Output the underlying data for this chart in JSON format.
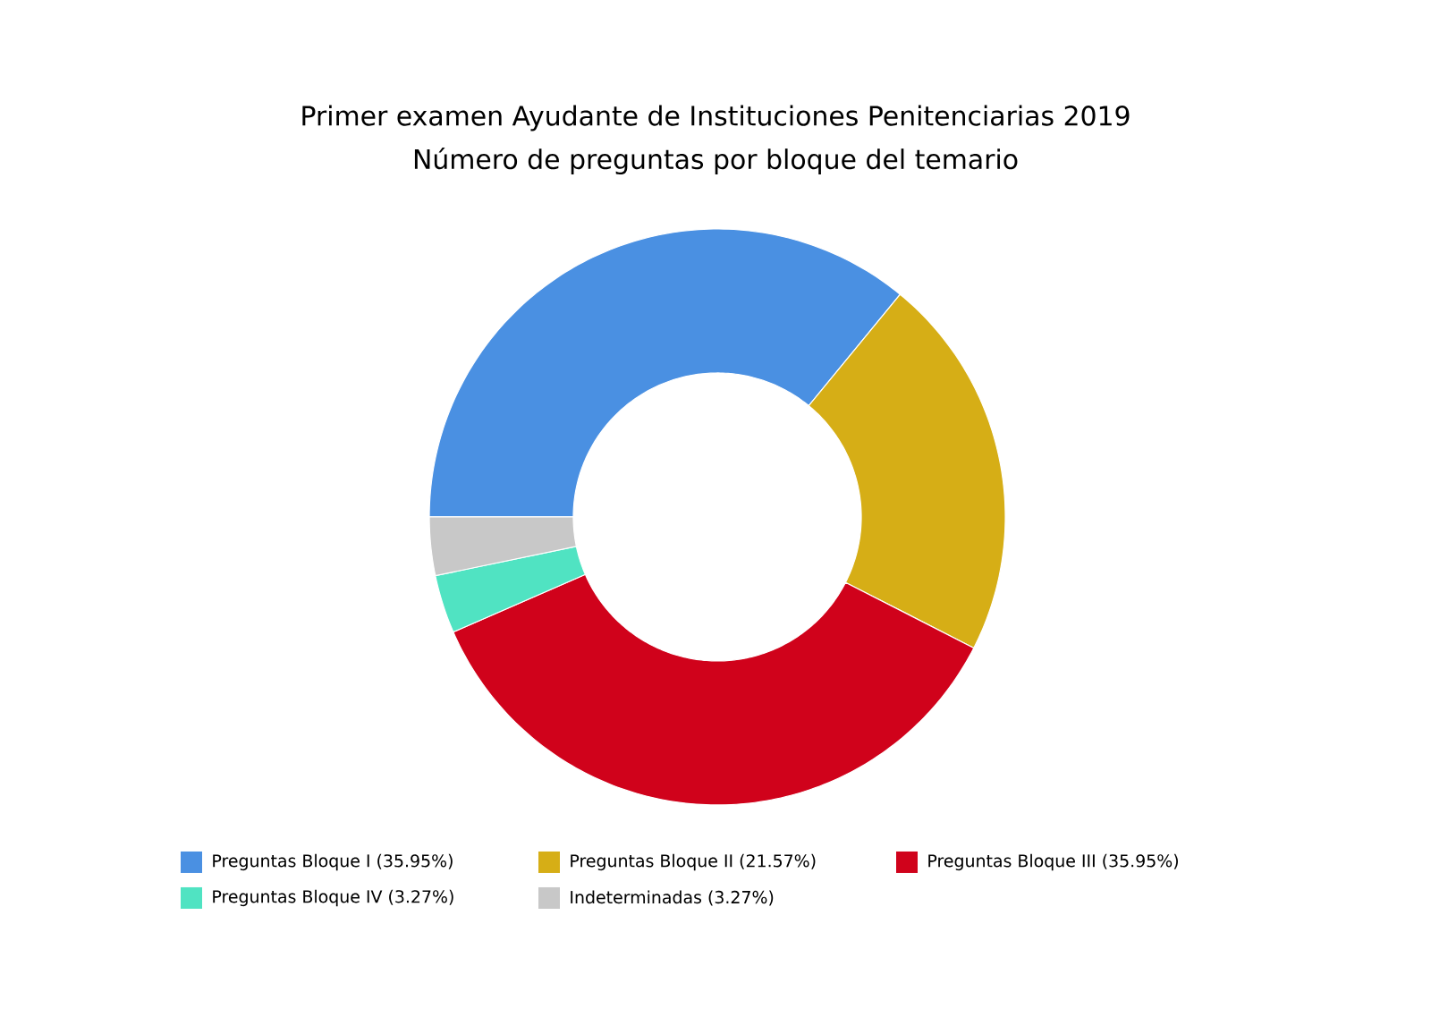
{
  "chart_data": {
    "type": "donut",
    "title": "Primer examen Ayudante de Instituciones Penitenciarias 2019",
    "subtitle": "Número de preguntas por bloque del temario",
    "categories": [
      "Preguntas Bloque I (35.95%)",
      "Preguntas Bloque II (21.57%)",
      "Preguntas Bloque III (35.95%)",
      "Preguntas Bloque IV (3.27%)",
      "Indeterminadas (3.27%)"
    ],
    "values": [
      35.95,
      21.57,
      35.95,
      3.27,
      3.27
    ],
    "colors": [
      "#4a90e2",
      "#d6ae16",
      "#d0021b",
      "#50e3c2",
      "#c8c8c8"
    ],
    "legend": "bottom"
  }
}
